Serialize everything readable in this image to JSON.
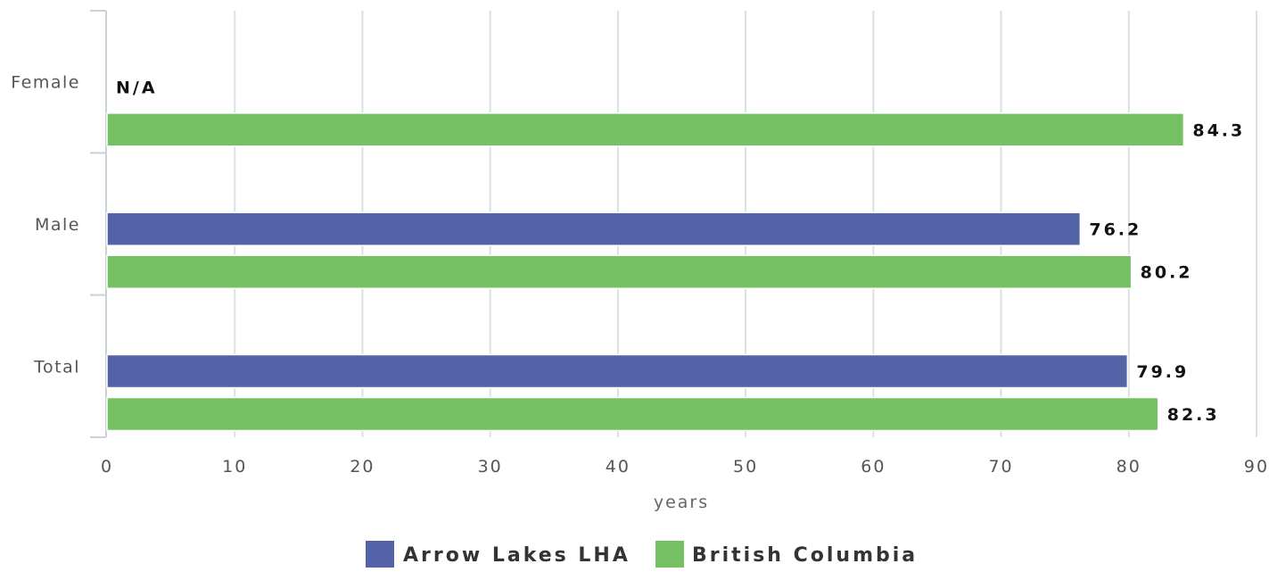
{
  "chart_data": {
    "type": "bar",
    "orientation": "horizontal",
    "categories": [
      "Female",
      "Male",
      "Total"
    ],
    "series": [
      {
        "name": "Arrow Lakes LHA",
        "values": [
          null,
          76.2,
          79.9
        ],
        "labels": [
          "N/A",
          "76.2",
          "79.9"
        ]
      },
      {
        "name": "British Columbia",
        "values": [
          84.3,
          80.2,
          82.3
        ],
        "labels": [
          "84.3",
          "80.2",
          "82.3"
        ]
      }
    ],
    "xlabel": "years",
    "ylabel": "",
    "xlim": [
      0,
      90
    ],
    "x_ticks": [
      "0",
      "10",
      "20",
      "30",
      "40",
      "50",
      "60",
      "70",
      "80",
      "90"
    ],
    "grid": true,
    "legend_position": "bottom-center"
  },
  "colors": {
    "series": [
      "#5463a8",
      "#74c063"
    ],
    "grid": "#dcdfe3",
    "axis": "#c8d1dc"
  }
}
